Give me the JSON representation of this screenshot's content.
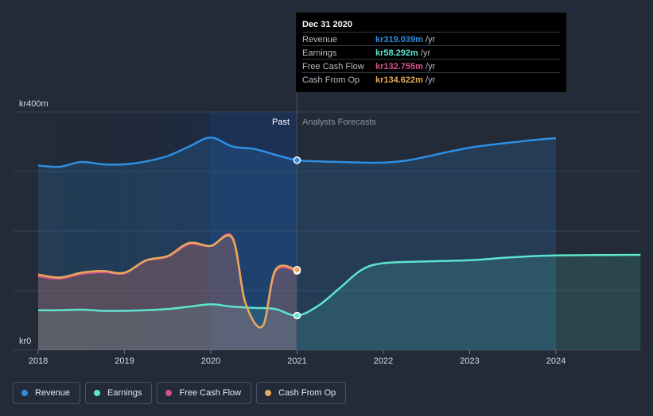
{
  "chart_data": {
    "type": "area",
    "currency_prefix": "kr",
    "y_axis_labels": [
      "kr400m",
      "kr0"
    ],
    "ylim": [
      0,
      400
    ],
    "x_ticks": [
      "2018",
      "2019",
      "2020",
      "2021",
      "2022",
      "2023",
      "2024"
    ],
    "xlim": [
      2017.7,
      2024.98
    ],
    "divider_x": 2021.0,
    "region_labels": {
      "past": "Past",
      "forecast": "Analysts Forecasts"
    },
    "series": [
      {
        "name": "Revenue",
        "color": "#2d8fe3",
        "x": [
          2018.0,
          2018.25,
          2018.5,
          2018.75,
          2019.0,
          2019.25,
          2019.5,
          2019.75,
          2020.0,
          2020.25,
          2020.5,
          2020.75,
          2021.0,
          2021.25,
          2021.5,
          2021.75,
          2022.0,
          2022.25,
          2022.5,
          2022.75,
          2023.0,
          2023.25,
          2023.5,
          2023.75,
          2024.0
        ],
        "values": [
          310,
          308,
          316,
          312,
          312,
          317,
          326,
          342,
          357,
          342,
          338,
          328,
          319,
          317,
          316,
          315,
          315,
          318,
          325,
          333,
          340,
          345,
          349,
          353,
          356
        ]
      },
      {
        "name": "Earnings",
        "color": "#5ee5d0",
        "x": [
          2018.0,
          2018.25,
          2018.5,
          2018.75,
          2019.0,
          2019.25,
          2019.5,
          2019.75,
          2020.0,
          2020.25,
          2020.5,
          2020.75,
          2021.0,
          2021.25,
          2021.5,
          2021.75,
          2022.0,
          2022.5,
          2023.0,
          2023.5,
          2024.0,
          2024.98
        ],
        "values": [
          67,
          67,
          68,
          66,
          66,
          67,
          69,
          73,
          77,
          73,
          71,
          69,
          58,
          75,
          105,
          135,
          146,
          149,
          151,
          156,
          159,
          160
        ]
      },
      {
        "name": "Free Cash Flow",
        "color": "#d6518c",
        "x": [
          2018.0,
          2018.25,
          2018.5,
          2018.75,
          2019.0,
          2019.25,
          2019.5,
          2019.75,
          2020.0,
          2020.25,
          2020.4,
          2020.6,
          2020.75,
          2021.0
        ],
        "values": [
          124,
          120,
          128,
          131,
          129,
          150,
          157,
          178,
          175,
          190,
          80,
          40,
          132,
          133
        ]
      },
      {
        "name": "Cash From Op",
        "color": "#e8a95a",
        "x": [
          2018.0,
          2018.25,
          2018.5,
          2018.75,
          2019.0,
          2019.25,
          2019.5,
          2019.75,
          2020.0,
          2020.25,
          2020.4,
          2020.6,
          2020.75,
          2021.0
        ],
        "values": [
          127,
          122,
          130,
          133,
          130,
          151,
          158,
          180,
          175,
          188,
          80,
          40,
          135,
          135
        ]
      }
    ]
  },
  "tooltip": {
    "date": "Dec 31 2020",
    "rows": [
      {
        "label": "Revenue",
        "value": "kr319.039m",
        "unit": "/yr",
        "color": "#2d8fe3"
      },
      {
        "label": "Earnings",
        "value": "kr58.292m",
        "unit": "/yr",
        "color": "#5ee5d0"
      },
      {
        "label": "Free Cash Flow",
        "value": "kr132.755m",
        "unit": "/yr",
        "color": "#d6518c"
      },
      {
        "label": "Cash From Op",
        "value": "kr134.622m",
        "unit": "/yr",
        "color": "#e8a95a"
      }
    ]
  },
  "legend": [
    {
      "label": "Revenue",
      "color": "#2d8fe3"
    },
    {
      "label": "Earnings",
      "color": "#5ee5d0"
    },
    {
      "label": "Free Cash Flow",
      "color": "#d6518c"
    },
    {
      "label": "Cash From Op",
      "color": "#e8a95a"
    }
  ]
}
